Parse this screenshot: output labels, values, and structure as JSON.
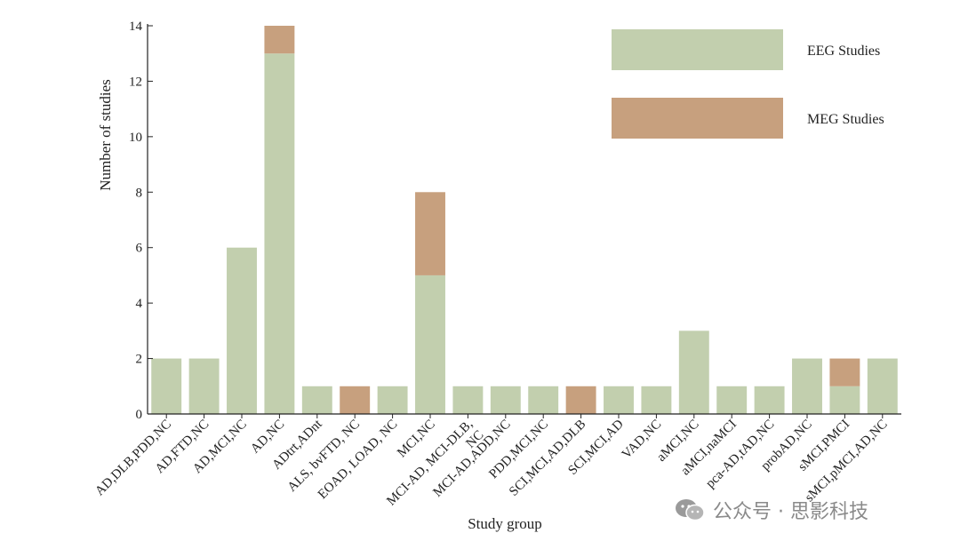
{
  "chart_data": {
    "type": "bar",
    "stacked": true,
    "xlabel": "Study group",
    "ylabel": "Number of studies",
    "ylim": [
      0,
      14
    ],
    "yticks": [
      0,
      2,
      4,
      6,
      8,
      10,
      12,
      14
    ],
    "categories": [
      "AD,DLB,PDD,NC",
      "AD,FTD,NC",
      "AD,MCI,NC",
      "AD,NC",
      "ADtrt,ADnt",
      "ALS, bvFTD, NC",
      "EOAD, LOAD, NC",
      "MCI,NC",
      "MCI-AD, MCI-DLB, NC",
      "MCI-AD,ADD,NC",
      "PDD,MCI,NC",
      "SCI,MCI,AD,DLB",
      "SCI,MCI,AD",
      "VAD,NC",
      "aMCI,NC",
      "aMCI,naMCI",
      "pca-AD,tAD,NC",
      "probAD,NC",
      "sMCI,PMCI",
      "sMCI,pMCI,AD,NC"
    ],
    "series": [
      {
        "name": "EEG Studies",
        "color": "#c2cfae",
        "values": [
          2,
          2,
          6,
          13,
          1,
          0,
          1,
          5,
          1,
          1,
          1,
          0,
          1,
          1,
          3,
          1,
          1,
          2,
          1,
          2
        ]
      },
      {
        "name": "MEG Studies",
        "color": "#c7a07e",
        "values": [
          0,
          0,
          0,
          1,
          0,
          1,
          0,
          3,
          0,
          0,
          0,
          1,
          0,
          0,
          0,
          0,
          0,
          0,
          1,
          0
        ]
      }
    ],
    "legend_position": "top-right",
    "grid": false
  },
  "watermark": {
    "text": "公众号 · 思影科技",
    "icon": "wechat-icon"
  }
}
